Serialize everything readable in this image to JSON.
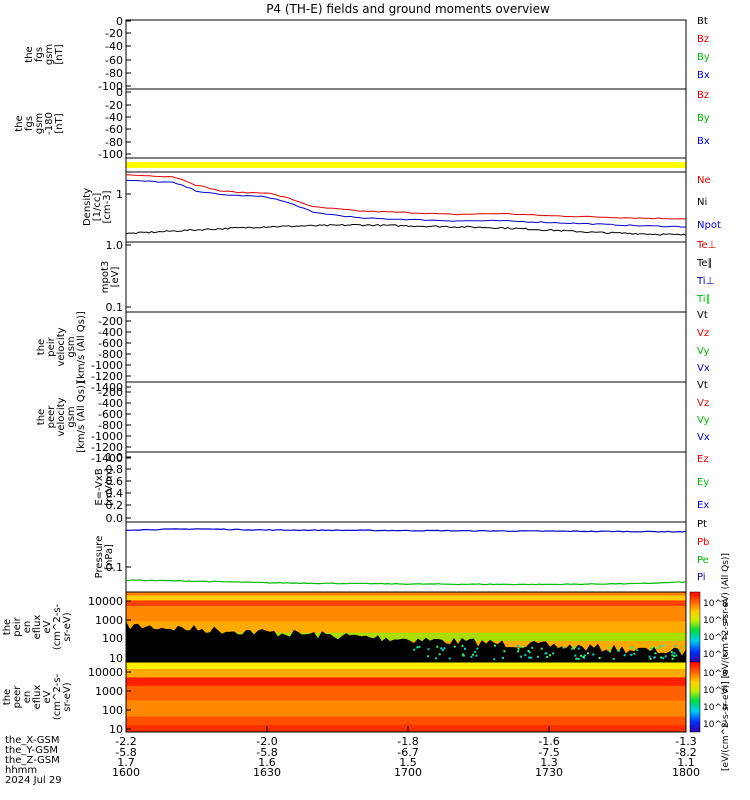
{
  "title": "P4 (TH-E) fields and ground moments overview",
  "panels": [
    {
      "id": "fgs1",
      "ylabel": [
        "the",
        "fgs",
        "gsm",
        "[nT]"
      ],
      "ticks": [
        "0",
        "-20",
        "-40",
        "-60",
        "-80",
        "-100"
      ],
      "legend": [
        {
          "text": "Bt",
          "color": "#000000"
        },
        {
          "text": "Bz",
          "color": "#dd0000"
        },
        {
          "text": "By",
          "color": "#00bb00"
        },
        {
          "text": "Bx",
          "color": "#0000cc"
        }
      ]
    },
    {
      "id": "fgs2",
      "ylabel": [
        "the",
        "fgs",
        "gsm",
        "-180",
        "[nT]"
      ],
      "ticks": [
        "0",
        "-20",
        "-40",
        "-60",
        "-80",
        "-100"
      ],
      "legend": [
        {
          "text": "Bz",
          "color": "#dd0000"
        },
        {
          "text": "By",
          "color": "#00bb00"
        },
        {
          "text": "Bx",
          "color": "#0000cc"
        }
      ]
    },
    {
      "id": "flag",
      "ylabel": [],
      "ticks": [],
      "legend": []
    },
    {
      "id": "density",
      "ylabel": [
        "Density",
        "[1/cc]",
        "[cm-3]"
      ],
      "ticks": [
        "1"
      ],
      "legend": [
        {
          "text": "Ne",
          "color": "#dd0000"
        },
        {
          "text": "Ni",
          "color": "#000000"
        },
        {
          "text": "Npot",
          "color": "#0000cc"
        }
      ]
    },
    {
      "id": "temp",
      "ylabel": [
        "mpot3",
        "[eV]"
      ],
      "ticks": [
        "1.0",
        "0.1"
      ],
      "legend": [
        {
          "text": "Te⊥",
          "color": "#dd0000"
        },
        {
          "text": "Te∥",
          "color": "#000000"
        },
        {
          "text": "Ti⊥",
          "color": "#0000cc"
        },
        {
          "text": "Ti∥",
          "color": "#00bb00"
        }
      ]
    },
    {
      "id": "vpeir",
      "ylabel": [
        "the",
        "peir",
        "velocity",
        "gsm",
        "[km/s (All Qs)]"
      ],
      "ticks": [
        "-200",
        "-400",
        "-600",
        "-800",
        "-1000",
        "-1200",
        "-1400"
      ],
      "legend": [
        {
          "text": "Vt",
          "color": "#000000"
        },
        {
          "text": "Vz",
          "color": "#dd0000"
        },
        {
          "text": "Vy",
          "color": "#00bb00"
        },
        {
          "text": "Vx",
          "color": "#0000cc"
        }
      ]
    },
    {
      "id": "vpeer",
      "ylabel": [
        "the",
        "peer",
        "velocity",
        "gsm",
        "[km/s (All Qs)]"
      ],
      "ticks": [
        "-200",
        "-400",
        "-600",
        "-800",
        "-1000",
        "-1200",
        "-1400"
      ],
      "legend": [
        {
          "text": "Vt",
          "color": "#000000"
        },
        {
          "text": "Vz",
          "color": "#dd0000"
        },
        {
          "text": "Vy",
          "color": "#00bb00"
        },
        {
          "text": "Vx",
          "color": "#0000cc"
        }
      ]
    },
    {
      "id": "efield",
      "ylabel": [
        "E=-VxB",
        "[mV/m]"
      ],
      "ticks": [
        "1.0",
        "0.8",
        "0.6",
        "0.4",
        "0.2",
        "0.0"
      ],
      "legend": [
        {
          "text": "Ez",
          "color": "#dd0000"
        },
        {
          "text": "Ey",
          "color": "#00bb00"
        },
        {
          "text": "Ex",
          "color": "#0000cc"
        }
      ]
    },
    {
      "id": "pressure",
      "ylabel": [
        "Pressure",
        "[nPa]"
      ],
      "ticks": [
        "0.1"
      ],
      "legend": [
        {
          "text": "Pt",
          "color": "#000000"
        },
        {
          "text": "Pb",
          "color": "#dd0000"
        },
        {
          "text": "Pe",
          "color": "#00bb00"
        },
        {
          "text": "Pi",
          "color": "#0000cc"
        }
      ]
    },
    {
      "id": "peir_en",
      "ylabel": [
        "the",
        "peir",
        "en",
        "eflux",
        "eV",
        "(cm^2-s-",
        "sr-eV)"
      ],
      "ticks": [
        "10000",
        "1000",
        "100",
        "10"
      ],
      "legend": []
    },
    {
      "id": "peer_en",
      "ylabel": [
        "the",
        "peer",
        "en",
        "eflux",
        "eV",
        "(cm^2-s-",
        "sr-eV)"
      ],
      "ticks": [
        "10000",
        "1000",
        "100",
        "10"
      ],
      "legend": []
    }
  ],
  "colorbars": [
    {
      "ticks": [
        "10^8",
        "10^6",
        "10^4",
        "10^2"
      ]
    },
    {
      "ticks": [
        "10^8",
        "10^6",
        "10^4",
        "10^2"
      ]
    }
  ],
  "colorbar_label": "[eV/(cm^2-s-sr-eV)] [eV/(cm^2-s-sr-eV) (All Qs)]",
  "bottom_labels": [
    "the_X-GSM",
    "the_Y-GSM",
    "the_Z-GSM",
    "hhmm",
    "2024 Jul 29"
  ],
  "xaxis": {
    "X": [
      "-2.2",
      "-2.0",
      "-1.8",
      "-1.6",
      "-1.3"
    ],
    "Y": [
      "-5.8",
      "-5.8",
      "-6.7",
      "-7.5",
      "-8.2"
    ],
    "Z": [
      "1.7",
      "1.6",
      "1.5",
      "1.3",
      "1.1"
    ],
    "hhmm": [
      "1600",
      "1630",
      "1700",
      "1730",
      "1800"
    ]
  },
  "chart_data": {
    "type": "line",
    "title": "P4 (TH-E) fields and ground moments overview",
    "time_range_hhmm": [
      "1600",
      "1800"
    ],
    "density": {
      "yscale": "log",
      "series": [
        {
          "name": "Ne",
          "color": "#dd0000",
          "x": [
            "1600",
            "1610",
            "1615",
            "1620",
            "1625",
            "1630",
            "1640",
            "1650",
            "1700",
            "1710",
            "1720",
            "1730",
            "1740",
            "1750",
            "1800"
          ],
          "y": [
            2.6,
            2.4,
            1.6,
            1.2,
            1.1,
            1.1,
            0.55,
            0.45,
            0.42,
            0.38,
            0.4,
            0.36,
            0.34,
            0.32,
            0.31
          ]
        },
        {
          "name": "Npot",
          "color": "#0000cc",
          "x": [
            "1600",
            "1610",
            "1615",
            "1620",
            "1625",
            "1630",
            "1640",
            "1650",
            "1700",
            "1710",
            "1720",
            "1730",
            "1740",
            "1750",
            "1800"
          ],
          "y": [
            2.0,
            1.8,
            1.2,
            1.0,
            0.95,
            0.9,
            0.42,
            0.32,
            0.3,
            0.28,
            0.28,
            0.26,
            0.24,
            0.22,
            0.21
          ]
        },
        {
          "name": "Ni",
          "color": "#000000",
          "x": [
            "1600",
            "1610",
            "1620",
            "1630",
            "1640",
            "1650",
            "1700",
            "1710",
            "1720",
            "1730",
            "1740",
            "1750",
            "1800"
          ],
          "y": [
            0.15,
            0.17,
            0.19,
            0.21,
            0.22,
            0.23,
            0.22,
            0.21,
            0.2,
            0.18,
            0.16,
            0.15,
            0.14
          ]
        }
      ]
    },
    "pressure": {
      "yscale": "log",
      "series": [
        {
          "name": "Pi",
          "color": "#0000cc",
          "x": [
            "1600",
            "1615",
            "1630",
            "1700",
            "1730",
            "1800"
          ],
          "y": [
            0.7,
            0.74,
            0.7,
            0.68,
            0.66,
            0.64
          ]
        },
        {
          "name": "Pe",
          "color": "#00bb00",
          "x": [
            "1600",
            "1615",
            "1630",
            "1700",
            "1730",
            "1750",
            "1800"
          ],
          "y": [
            0.055,
            0.052,
            0.048,
            0.045,
            0.044,
            0.046,
            0.05
          ]
        }
      ]
    }
  }
}
